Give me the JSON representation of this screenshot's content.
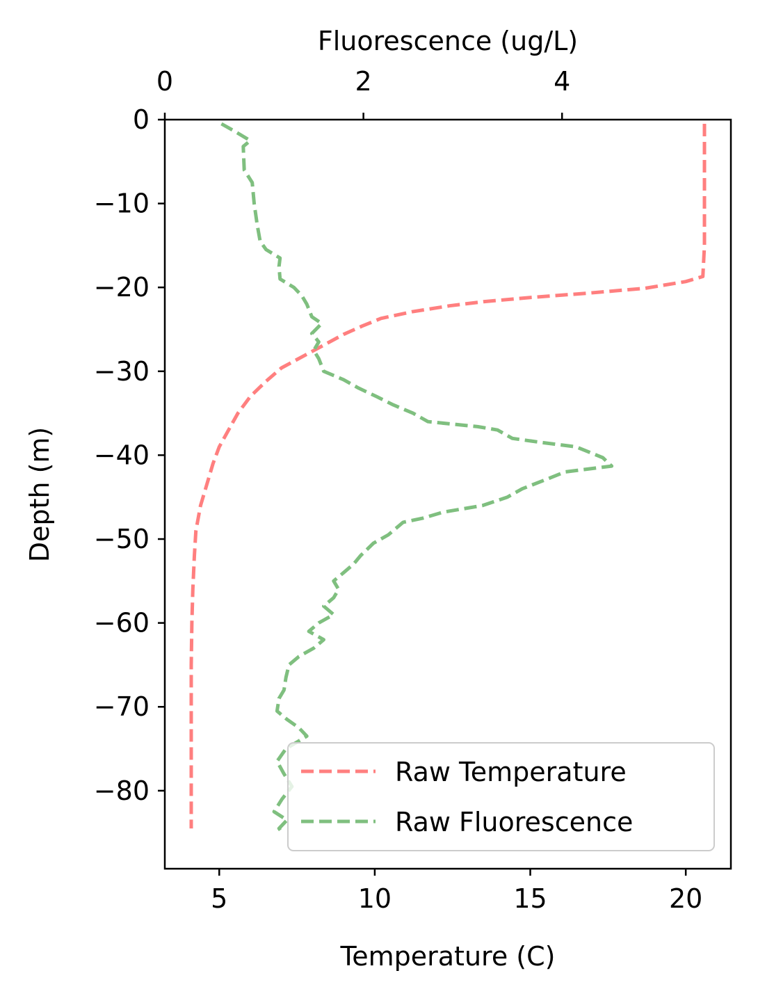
{
  "chart_data": {
    "type": "line",
    "title": "",
    "xlabel": "Temperature (C)",
    "x2label": "Fluorescence (ug/L)",
    "ylabel": "Depth (m)",
    "xlim": [
      3.25,
      21.45
    ],
    "x2lim": [
      0,
      5.7
    ],
    "ylim": [
      -89.3,
      0
    ],
    "x_ticks": [
      5,
      10,
      15,
      20
    ],
    "x_tick_labels": [
      "5",
      "10",
      "15",
      "20"
    ],
    "x2_ticks": [
      0,
      2,
      4
    ],
    "x2_tick_labels": [
      "0",
      "2",
      "4"
    ],
    "y_ticks": [
      0,
      -10,
      -20,
      -30,
      -40,
      -50,
      -60,
      -70,
      -80
    ],
    "y_tick_labels": [
      "0",
      "−10",
      "−20",
      "−30",
      "−40",
      "−50",
      "−60",
      "−70",
      "−80"
    ],
    "grid": false,
    "legend_position": "bottom-right",
    "colors": {
      "temperature": "#ff7f7f",
      "fluorescence": "#7fbf7f"
    },
    "series": [
      {
        "name": "Raw Temperature",
        "axis": "bottom",
        "style": "dashed",
        "color": "#ff7f7f",
        "points": [
          [
            20.6,
            -0.5
          ],
          [
            20.6,
            -5
          ],
          [
            20.6,
            -10
          ],
          [
            20.6,
            -15
          ],
          [
            20.55,
            -18.7
          ],
          [
            20.0,
            -19.3
          ],
          [
            18.7,
            -20.1
          ],
          [
            16.8,
            -20.7
          ],
          [
            15.0,
            -21.2
          ],
          [
            13.5,
            -21.7
          ],
          [
            12.4,
            -22.2
          ],
          [
            11.2,
            -22.9
          ],
          [
            10.2,
            -23.7
          ],
          [
            9.6,
            -24.6
          ],
          [
            9.0,
            -25.6
          ],
          [
            8.5,
            -26.6
          ],
          [
            7.8,
            -28.0
          ],
          [
            7.0,
            -29.6
          ],
          [
            6.5,
            -31.2
          ],
          [
            6.0,
            -33.0
          ],
          [
            5.6,
            -35.0
          ],
          [
            5.3,
            -37.0
          ],
          [
            5.0,
            -39.0
          ],
          [
            4.8,
            -41.0
          ],
          [
            4.6,
            -43.5
          ],
          [
            4.4,
            -46.0
          ],
          [
            4.25,
            -49.0
          ],
          [
            4.2,
            -52.0
          ],
          [
            4.15,
            -56.0
          ],
          [
            4.12,
            -60.0
          ],
          [
            4.1,
            -65.0
          ],
          [
            4.1,
            -70.0
          ],
          [
            4.1,
            -75.0
          ],
          [
            4.1,
            -80.0
          ],
          [
            4.1,
            -84.5
          ]
        ]
      },
      {
        "name": "Raw Fluorescence",
        "axis": "top",
        "style": "dashed",
        "color": "#7fbf7f",
        "points": [
          [
            0.57,
            -0.5
          ],
          [
            0.72,
            -1.5
          ],
          [
            0.86,
            -2.5
          ],
          [
            0.79,
            -3.2
          ],
          [
            0.8,
            -6.0
          ],
          [
            0.88,
            -7.5
          ],
          [
            0.9,
            -10.0
          ],
          [
            0.93,
            -12.5
          ],
          [
            0.96,
            -14.5
          ],
          [
            1.02,
            -15.5
          ],
          [
            1.16,
            -16.5
          ],
          [
            1.15,
            -17.5
          ],
          [
            1.16,
            -19.0
          ],
          [
            1.3,
            -20.0
          ],
          [
            1.38,
            -21.0
          ],
          [
            1.43,
            -22.0
          ],
          [
            1.48,
            -23.5
          ],
          [
            1.58,
            -24.3
          ],
          [
            1.48,
            -25.5
          ],
          [
            1.55,
            -26.5
          ],
          [
            1.5,
            -27.5
          ],
          [
            1.55,
            -28.5
          ],
          [
            1.6,
            -30.0
          ],
          [
            1.8,
            -31.0
          ],
          [
            1.95,
            -32.0
          ],
          [
            2.13,
            -33.0
          ],
          [
            2.3,
            -34.0
          ],
          [
            2.5,
            -35.0
          ],
          [
            2.65,
            -36.0
          ],
          [
            3.15,
            -36.6
          ],
          [
            3.35,
            -37.0
          ],
          [
            3.5,
            -38.0
          ],
          [
            3.8,
            -38.5
          ],
          [
            4.14,
            -39.0
          ],
          [
            4.41,
            -40.3
          ],
          [
            4.5,
            -41.3
          ],
          [
            4.03,
            -42.0
          ],
          [
            3.86,
            -42.8
          ],
          [
            3.6,
            -44.0
          ],
          [
            3.45,
            -45.0
          ],
          [
            3.2,
            -46.0
          ],
          [
            2.8,
            -46.8
          ],
          [
            2.6,
            -47.5
          ],
          [
            2.4,
            -48.0
          ],
          [
            2.25,
            -49.5
          ],
          [
            2.1,
            -50.5
          ],
          [
            1.97,
            -52.0
          ],
          [
            1.9,
            -53.0
          ],
          [
            1.8,
            -54.0
          ],
          [
            1.7,
            -55.0
          ],
          [
            1.75,
            -56.0
          ],
          [
            1.7,
            -57.0
          ],
          [
            1.6,
            -58.0
          ],
          [
            1.7,
            -59.0
          ],
          [
            1.55,
            -60.0
          ],
          [
            1.45,
            -61.0
          ],
          [
            1.6,
            -62.0
          ],
          [
            1.5,
            -63.0
          ],
          [
            1.35,
            -64.0
          ],
          [
            1.25,
            -65.0
          ],
          [
            1.22,
            -66.5
          ],
          [
            1.2,
            -68.0
          ],
          [
            1.15,
            -69.0
          ],
          [
            1.13,
            -70.5
          ],
          [
            1.23,
            -71.5
          ],
          [
            1.35,
            -72.5
          ],
          [
            1.43,
            -73.5
          ],
          [
            1.22,
            -75.0
          ],
          [
            1.13,
            -76.5
          ],
          [
            1.2,
            -78.0
          ],
          [
            1.28,
            -79.5
          ],
          [
            1.18,
            -81.0
          ],
          [
            1.1,
            -82.5
          ],
          [
            1.23,
            -83.5
          ],
          [
            1.15,
            -84.5
          ],
          [
            1.18,
            -85.0
          ]
        ]
      }
    ]
  }
}
